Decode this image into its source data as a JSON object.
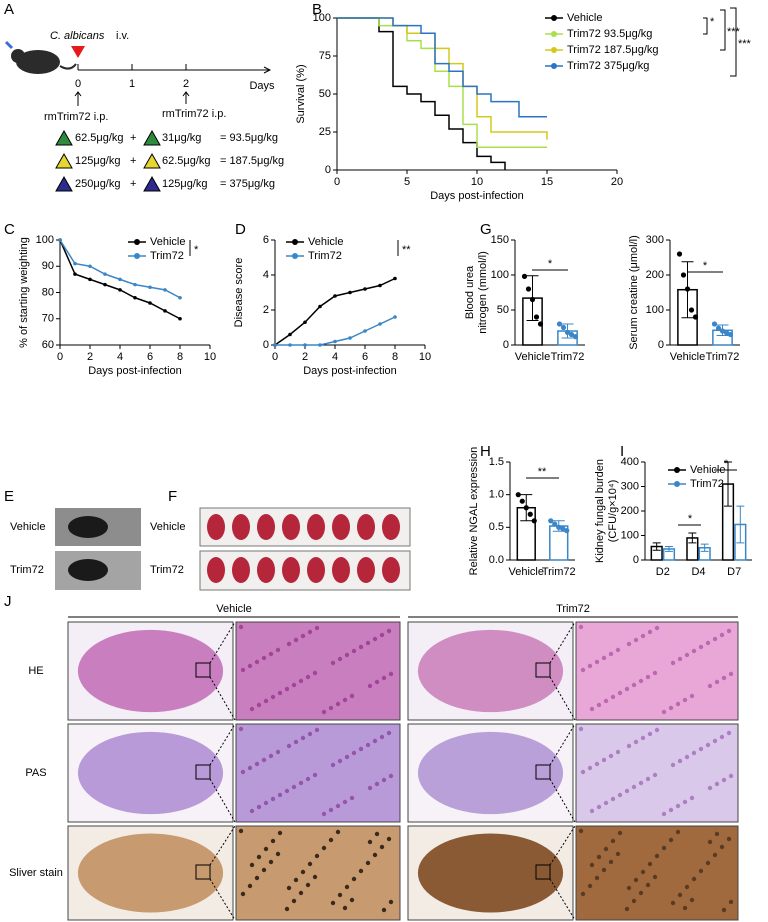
{
  "panels": {
    "letters": [
      "A",
      "B",
      "C",
      "D",
      "E",
      "F",
      "G",
      "H",
      "I",
      "J"
    ],
    "A": {
      "organism": "C. albicans",
      "route": "i.v.",
      "ticks": [
        "0",
        "1",
        "2"
      ],
      "unit": "Days",
      "treatments": [
        "rmTrim72 i.p.",
        "rmTrim72  i.p."
      ],
      "doses": [
        {
          "first": "62.5μg/kg",
          "plus": "+",
          "second": "31μg/kg",
          "total": "= 93.5μg/kg",
          "color": "#2e8b3e"
        },
        {
          "first": "125μg/kg",
          "plus": "+",
          "second": "62.5μg/kg",
          "total": "= 187.5μg/kg",
          "color": "#e8d630"
        },
        {
          "first": "250μg/kg",
          "plus": "+",
          "second": "125μg/kg",
          "total": "= 375μg/kg",
          "color": "#2c2a8c"
        }
      ]
    },
    "E": {
      "labels": [
        "Vehicle",
        "Trim72"
      ]
    },
    "F": {
      "labels": [
        "Vehicle",
        "Trim72"
      ]
    },
    "J": {
      "groups": [
        "Vehicle",
        "Trim72"
      ],
      "stains": [
        "HE",
        "PAS",
        "Sliver stain"
      ]
    }
  },
  "chart_data": [
    {
      "type": "step",
      "xlabel": "Days post-infection",
      "ylabel": [
        "Survival (%)"
      ],
      "xlim": [
        0,
        20
      ],
      "xticks": [
        0,
        5,
        10,
        15,
        20
      ],
      "ylim": [
        0,
        100
      ],
      "yticks": [
        0,
        25,
        50,
        75,
        100
      ],
      "series": [
        {
          "name": "Vehicle",
          "color": "#000000",
          "x": [
            0,
            3,
            4,
            5,
            6,
            7,
            8,
            9,
            10,
            11,
            12
          ],
          "values": [
            100,
            91,
            55,
            50,
            45,
            36,
            27,
            18,
            9,
            5,
            0
          ]
        },
        {
          "name": "Trim72 93.5μg/kg",
          "color": "#a8e04a",
          "x": [
            0,
            3,
            5,
            6,
            7,
            8,
            9,
            10,
            15
          ],
          "values": [
            100,
            95,
            85,
            80,
            65,
            55,
            30,
            15,
            15
          ]
        },
        {
          "name": "Trim72 187.5μg/kg",
          "color": "#d4c81c",
          "x": [
            0,
            4,
            5,
            7,
            8,
            9,
            10,
            11,
            15
          ],
          "values": [
            100,
            95,
            90,
            80,
            70,
            55,
            35,
            25,
            20
          ]
        },
        {
          "name": "Trim72 375μg/kg",
          "color": "#2b73c4",
          "x": [
            0,
            4,
            6,
            7,
            8,
            9,
            10,
            11,
            13,
            15
          ],
          "values": [
            100,
            95,
            90,
            70,
            65,
            55,
            50,
            45,
            35,
            35
          ]
        }
      ],
      "annotations": [
        "*",
        "***",
        "***"
      ]
    },
    {
      "type": "line",
      "xlabel": "Days post-infection",
      "ylabel": [
        "% of starting weighting"
      ],
      "xlim": [
        0,
        10
      ],
      "xticks": [
        0,
        2,
        4,
        6,
        8,
        10
      ],
      "ylim": [
        60,
        100
      ],
      "yticks": [
        60,
        70,
        80,
        90,
        100
      ],
      "series": [
        {
          "name": "Vehicle",
          "color": "#000000",
          "x": [
            0,
            1,
            2,
            3,
            4,
            5,
            6,
            7,
            8
          ],
          "values": [
            100,
            87,
            85,
            83,
            81,
            78,
            76,
            73,
            70
          ]
        },
        {
          "name": "Trim72",
          "color": "#3a86c8",
          "x": [
            0,
            1,
            2,
            3,
            4,
            5,
            6,
            7,
            8
          ],
          "values": [
            100,
            91,
            90,
            87,
            85,
            83,
            82,
            81,
            78
          ]
        }
      ],
      "annotations": [
        "*"
      ]
    },
    {
      "type": "line",
      "xlabel": "Days post-infection",
      "ylabel": [
        "Disease score"
      ],
      "xlim": [
        0,
        10
      ],
      "xticks": [
        0,
        2,
        4,
        6,
        8,
        10
      ],
      "ylim": [
        0,
        6
      ],
      "yticks": [
        0,
        2,
        4,
        6
      ],
      "series": [
        {
          "name": "Vehicle",
          "color": "#000000",
          "x": [
            0,
            1,
            2,
            3,
            4,
            5,
            6,
            7,
            8
          ],
          "values": [
            0,
            0.6,
            1.3,
            2.2,
            2.8,
            3.0,
            3.2,
            3.4,
            3.8
          ]
        },
        {
          "name": "Trim72",
          "color": "#3a86c8",
          "x": [
            0,
            1,
            2,
            3,
            4,
            5,
            6,
            7,
            8
          ],
          "values": [
            0,
            0,
            0,
            0,
            0.2,
            0.4,
            0.8,
            1.2,
            1.6
          ]
        }
      ],
      "annotations": [
        "**"
      ]
    },
    {
      "type": "bar",
      "ylabel": [
        "Blood urea",
        "nitrogen  (mmol/l)"
      ],
      "categories": [
        "Vehicle",
        "Trim72"
      ],
      "values": [
        67,
        20
      ],
      "errors": [
        32,
        10
      ],
      "colors": [
        "#000000",
        "#3a86c8"
      ],
      "points": [
        [
          98,
          80,
          65,
          40,
          30
        ],
        [
          30,
          25,
          18,
          15,
          12
        ]
      ],
      "ylim": [
        0,
        150
      ],
      "yticks": [
        0,
        50,
        100,
        150
      ],
      "annotations": [
        "*"
      ]
    },
    {
      "type": "bar",
      "ylabel": [
        "Serum creatine (μmol/l)"
      ],
      "categories": [
        "Vehicle",
        "Trim72"
      ],
      "values": [
        158,
        42
      ],
      "errors": [
        80,
        15
      ],
      "colors": [
        "#000000",
        "#3a86c8"
      ],
      "points": [
        [
          260,
          200,
          160,
          100,
          80
        ],
        [
          60,
          48,
          40,
          35,
          30
        ]
      ],
      "ylim": [
        0,
        300
      ],
      "yticks": [
        0,
        100,
        200,
        300
      ],
      "annotations": [
        "*"
      ]
    },
    {
      "type": "bar",
      "ylabel": [
        "Relative NGAL expression"
      ],
      "categories": [
        "Vehicle",
        "Trim72"
      ],
      "values": [
        0.8,
        0.52
      ],
      "errors": [
        0.2,
        0.08
      ],
      "colors": [
        "#000000",
        "#3a86c8"
      ],
      "points": [
        [
          1.0,
          0.9,
          0.8,
          0.7,
          0.6
        ],
        [
          0.6,
          0.55,
          0.5,
          0.48,
          0.45
        ]
      ],
      "ylim": [
        0,
        1.5
      ],
      "yticks": [
        {
          "value": 0,
          "label": "0.0"
        },
        0.5,
        {
          "value": 1,
          "label": "1.0"
        },
        1.5
      ],
      "annotations": [
        "**"
      ]
    },
    {
      "type": "grouped_bar",
      "ylabel": [
        "Kidney fungal burden",
        "(CFU/g×10⁴)"
      ],
      "categories": [
        "D2",
        "D4",
        "D7"
      ],
      "series": [
        {
          "name": "Vehicle",
          "color": "#000000",
          "values": [
            55,
            90,
            310
          ],
          "errors": [
            15,
            20,
            90
          ]
        },
        {
          "name": "Trim72",
          "color": "#3a86c8",
          "values": [
            45,
            50,
            145
          ],
          "errors": [
            10,
            15,
            75
          ]
        }
      ],
      "ylim": [
        0,
        400
      ],
      "yticks": [
        0,
        100,
        200,
        300,
        400
      ],
      "annotations": [
        "*",
        "*"
      ]
    }
  ]
}
